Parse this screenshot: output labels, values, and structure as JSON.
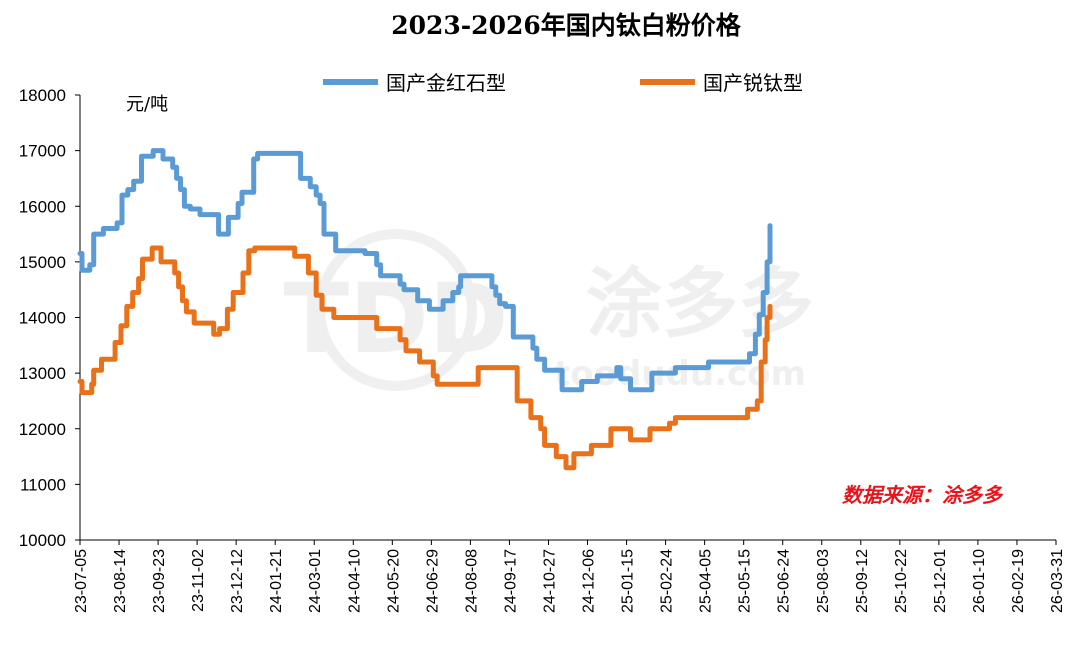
{
  "chart_data": {
    "type": "line",
    "title": "2023-2026年国内钛白粉价格",
    "unit_label": "元/吨",
    "source_label": "数据来源：涂多多",
    "source_color": "#e8141b",
    "watermark": {
      "logo": "TDD",
      "name": "涂多多",
      "site": "toodudu.com"
    },
    "ylim": [
      10000,
      18000
    ],
    "yticks": [
      10000,
      11000,
      12000,
      13000,
      14000,
      15000,
      16000,
      17000,
      18000
    ],
    "xlim": [
      "2023-07-05",
      "2026-03-31"
    ],
    "xticks": [
      "23-07-05",
      "23-08-14",
      "23-09-23",
      "23-11-02",
      "23-12-12",
      "24-01-21",
      "24-03-01",
      "24-04-10",
      "24-05-20",
      "24-06-29",
      "24-08-08",
      "24-09-17",
      "24-10-27",
      "24-12-06",
      "25-01-15",
      "25-02-24",
      "25-04-05",
      "25-05-15",
      "25-06-24",
      "25-08-03",
      "25-09-12",
      "25-10-22",
      "25-12-01",
      "26-01-10",
      "26-02-19",
      "26-03-31"
    ],
    "legend_position": "top",
    "grid": false,
    "series": [
      {
        "name": "国产金红石型",
        "color": "#5b9bd5",
        "points": [
          [
            "2023-07-05",
            15150
          ],
          [
            "2023-07-07",
            14850
          ],
          [
            "2023-07-15",
            14950
          ],
          [
            "2023-07-19",
            15500
          ],
          [
            "2023-07-29",
            15600
          ],
          [
            "2023-08-12",
            15700
          ],
          [
            "2023-08-17",
            16200
          ],
          [
            "2023-08-23",
            16300
          ],
          [
            "2023-08-29",
            16450
          ],
          [
            "2023-09-06",
            16900
          ],
          [
            "2023-09-18",
            17000
          ],
          [
            "2023-09-28",
            16850
          ],
          [
            "2023-10-08",
            16700
          ],
          [
            "2023-10-12",
            16500
          ],
          [
            "2023-10-16",
            16300
          ],
          [
            "2023-10-20",
            16000
          ],
          [
            "2023-10-26",
            15950
          ],
          [
            "2023-11-05",
            15850
          ],
          [
            "2023-11-24",
            15500
          ],
          [
            "2023-12-04",
            15800
          ],
          [
            "2023-12-14",
            16050
          ],
          [
            "2023-12-18",
            16250
          ],
          [
            "2023-12-30",
            16850
          ],
          [
            "2024-01-03",
            16950
          ],
          [
            "2024-02-16",
            16500
          ],
          [
            "2024-02-26",
            16350
          ],
          [
            "2024-03-03",
            16200
          ],
          [
            "2024-03-07",
            16050
          ],
          [
            "2024-03-11",
            15500
          ],
          [
            "2024-03-23",
            15200
          ],
          [
            "2024-04-22",
            15150
          ],
          [
            "2024-05-04",
            14950
          ],
          [
            "2024-05-08",
            14750
          ],
          [
            "2024-05-28",
            14600
          ],
          [
            "2024-06-01",
            14500
          ],
          [
            "2024-06-15",
            14300
          ],
          [
            "2024-06-27",
            14150
          ],
          [
            "2024-07-11",
            14300
          ],
          [
            "2024-07-21",
            14450
          ],
          [
            "2024-07-27",
            14550
          ],
          [
            "2024-07-29",
            14750
          ],
          [
            "2024-08-30",
            14550
          ],
          [
            "2024-09-03",
            14400
          ],
          [
            "2024-09-07",
            14250
          ],
          [
            "2024-09-13",
            14200
          ],
          [
            "2024-09-21",
            13650
          ],
          [
            "2024-10-11",
            13450
          ],
          [
            "2024-10-15",
            13250
          ],
          [
            "2024-10-23",
            13050
          ],
          [
            "2024-11-10",
            12700
          ],
          [
            "2024-11-30",
            12850
          ],
          [
            "2024-12-16",
            12950
          ],
          [
            "2025-01-05",
            13100
          ],
          [
            "2025-01-09",
            12900
          ],
          [
            "2025-01-19",
            12700
          ],
          [
            "2025-02-10",
            13000
          ],
          [
            "2025-03-06",
            13100
          ],
          [
            "2025-04-09",
            13200
          ],
          [
            "2025-05-21",
            13350
          ],
          [
            "2025-05-27",
            13700
          ],
          [
            "2025-05-31",
            14050
          ],
          [
            "2025-06-04",
            14450
          ],
          [
            "2025-06-08",
            15000
          ],
          [
            "2025-06-11",
            15650
          ]
        ]
      },
      {
        "name": "国产锐钛型",
        "color": "#e8711a",
        "points": [
          [
            "2023-07-05",
            12850
          ],
          [
            "2023-07-07",
            12650
          ],
          [
            "2023-07-17",
            12800
          ],
          [
            "2023-07-19",
            13050
          ],
          [
            "2023-07-27",
            13250
          ],
          [
            "2023-08-10",
            13550
          ],
          [
            "2023-08-16",
            13850
          ],
          [
            "2023-08-22",
            14200
          ],
          [
            "2023-08-28",
            14450
          ],
          [
            "2023-09-03",
            14700
          ],
          [
            "2023-09-07",
            15050
          ],
          [
            "2023-09-17",
            15250
          ],
          [
            "2023-09-26",
            15000
          ],
          [
            "2023-10-10",
            14800
          ],
          [
            "2023-10-14",
            14550
          ],
          [
            "2023-10-18",
            14300
          ],
          [
            "2023-10-22",
            14100
          ],
          [
            "2023-10-30",
            13900
          ],
          [
            "2023-11-19",
            13700
          ],
          [
            "2023-11-25",
            13800
          ],
          [
            "2023-12-03",
            14150
          ],
          [
            "2023-12-09",
            14450
          ],
          [
            "2023-12-19",
            14800
          ],
          [
            "2023-12-25",
            15200
          ],
          [
            "2023-12-31",
            15250
          ],
          [
            "2024-02-10",
            15100
          ],
          [
            "2024-02-24",
            14800
          ],
          [
            "2024-03-03",
            14400
          ],
          [
            "2024-03-09",
            14150
          ],
          [
            "2024-03-21",
            14000
          ],
          [
            "2024-05-04",
            13800
          ],
          [
            "2024-05-28",
            13600
          ],
          [
            "2024-06-03",
            13400
          ],
          [
            "2024-06-17",
            13200
          ],
          [
            "2024-07-01",
            12950
          ],
          [
            "2024-07-05",
            12800
          ],
          [
            "2024-08-16",
            13100
          ],
          [
            "2024-09-25",
            12500
          ],
          [
            "2024-10-09",
            12200
          ],
          [
            "2024-10-19",
            12000
          ],
          [
            "2024-10-23",
            11700
          ],
          [
            "2024-11-04",
            11500
          ],
          [
            "2024-11-14",
            11300
          ],
          [
            "2024-11-22",
            11550
          ],
          [
            "2024-12-10",
            11700
          ],
          [
            "2024-12-30",
            12000
          ],
          [
            "2025-01-19",
            11800
          ],
          [
            "2025-02-08",
            12000
          ],
          [
            "2025-02-28",
            12100
          ],
          [
            "2025-03-06",
            12200
          ],
          [
            "2025-05-19",
            12350
          ],
          [
            "2025-05-29",
            12500
          ],
          [
            "2025-06-02",
            13200
          ],
          [
            "2025-06-06",
            13600
          ],
          [
            "2025-06-08",
            14000
          ],
          [
            "2025-06-11",
            14200
          ]
        ]
      }
    ]
  }
}
